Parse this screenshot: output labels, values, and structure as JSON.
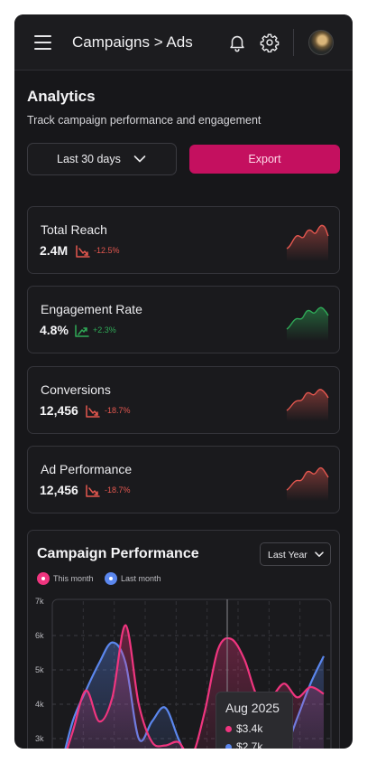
{
  "header": {
    "breadcrumb": "Campaigns > Ads",
    "icons": [
      "menu-icon",
      "bell-icon",
      "gear-icon",
      "avatar"
    ]
  },
  "analytics": {
    "title": "Analytics",
    "subtitle": "Track campaign performance and engagement",
    "range_label": "Last 30 days",
    "export_label": "Export"
  },
  "kpis": [
    {
      "title": "Total Reach",
      "value": "2.4M",
      "delta": "-12.5%",
      "direction": "down",
      "color": "#e4574f"
    },
    {
      "title": "Engagement Rate",
      "value": "4.8%",
      "delta": "+2.3%",
      "direction": "up",
      "color": "#2fa957"
    },
    {
      "title": "Conversions",
      "value": "12,456",
      "delta": "-18.7%",
      "direction": "down",
      "color": "#e4574f"
    },
    {
      "title": "Ad Performance",
      "value": "12,456",
      "delta": "-18.7%",
      "direction": "down",
      "color": "#e4574f"
    }
  ],
  "performance": {
    "title": "Campaign Performance",
    "period_label": "Last Year",
    "legend": [
      "This month",
      "Last month"
    ],
    "tooltip": {
      "title": "Aug 2025",
      "this_value": "$3.4k",
      "last_value": "$2.7k"
    }
  },
  "colors": {
    "accent": "#c4105f",
    "this_month": "#f0357f",
    "last_month": "#5b87ee",
    "down": "#e4574f",
    "up": "#2fa957"
  },
  "chart_data": {
    "type": "area",
    "yticks": [
      "7k",
      "6k",
      "5k",
      "4k",
      "3k"
    ],
    "ylim": [
      2000,
      7000
    ],
    "x": [
      0,
      1,
      2,
      3,
      4,
      5,
      6,
      7,
      8,
      9,
      10,
      11,
      12,
      13,
      14,
      15,
      16,
      17,
      18,
      19,
      20
    ],
    "series": [
      {
        "name": "This month",
        "values": [
          2.0,
          3.2,
          4.4,
          3.5,
          4.2,
          6.3,
          4.0,
          2.9,
          2.8,
          2.9,
          2.5,
          3.8,
          5.6,
          5.9,
          5.3,
          4.2,
          4.2,
          4.6,
          4.2,
          4.5,
          4.3
        ]
      },
      {
        "name": "Last month",
        "values": [
          2.0,
          3.5,
          4.4,
          5.2,
          5.8,
          5.2,
          3.0,
          3.5,
          3.9,
          3.0,
          2.2,
          2.0,
          1.8,
          1.6,
          1.5,
          1.8,
          2.1,
          2.6,
          3.6,
          4.6,
          5.4
        ]
      }
    ],
    "grid": true
  }
}
